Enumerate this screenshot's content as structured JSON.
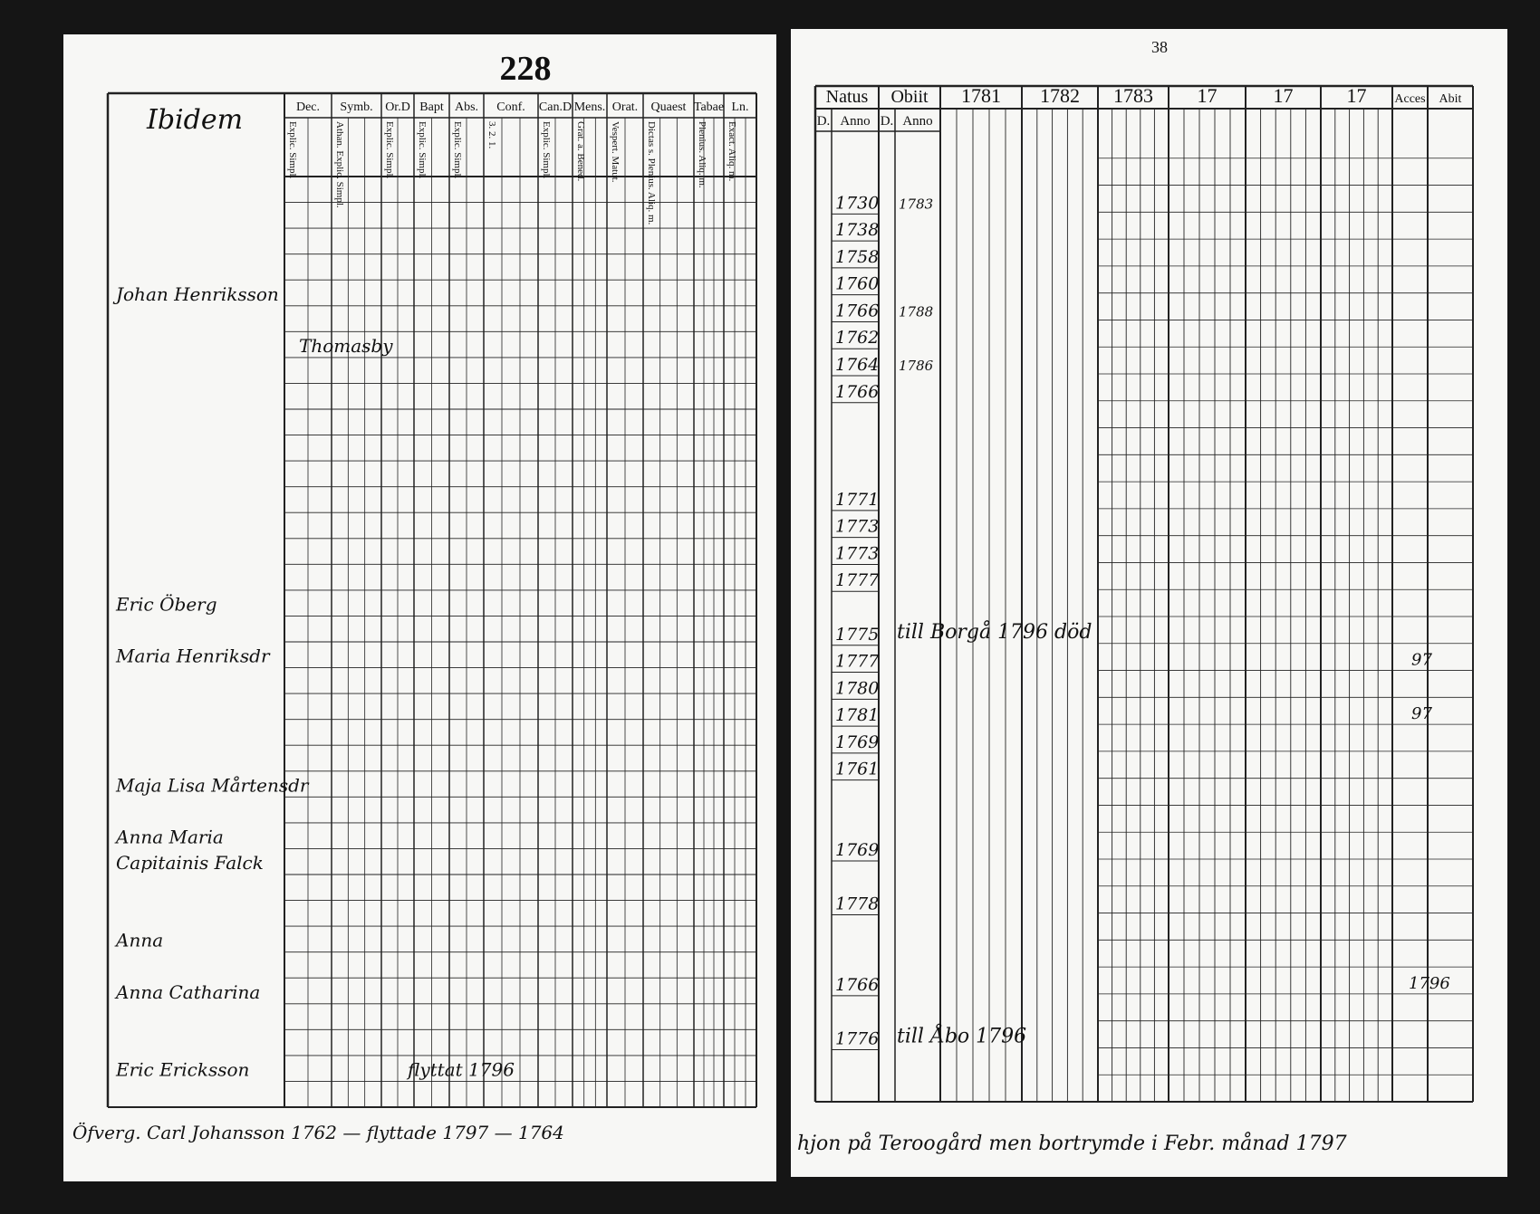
{
  "left_page": {
    "page_number": "228",
    "header": "Ibidem",
    "columns": [
      {
        "label": "Dec.",
        "sub": "Explic. Simpl."
      },
      {
        "label": "Symb.",
        "sub": "Athan. Explic. Simpl."
      },
      {
        "label": "Or.D",
        "sub": "Explic. Simpl."
      },
      {
        "label": "Bapt",
        "sub": "Explic. Simpl."
      },
      {
        "label": "Abs.",
        "sub": "Explic. Simpl."
      },
      {
        "label": "Conf.",
        "sub": "3. 2. 1."
      },
      {
        "label": "Can.D",
        "sub": "Explic. Simpl."
      },
      {
        "label": "Mens.",
        "sub": "Grat. a. Bened."
      },
      {
        "label": "Orat.",
        "sub": "Vespert. Matut."
      },
      {
        "label": "Quaest",
        "sub": "Dictas s. Plenius. Aliq. m."
      },
      {
        "label": "Tabae",
        "sub": "Plenius. Aliq. m."
      },
      {
        "label": "Ln.",
        "sub": "Exact. Aliq. m."
      }
    ],
    "rows": [
      "Johan Henriksson",
      "Thomasby",
      "Eric Öberg",
      "Maria Henriksdr",
      "Maja Lisa Mårtensdr",
      "Anna Maria",
      "Capitainis Falck",
      "Anna",
      "Anna Catharina",
      "Eric Ericksson",
      "flyttat 1796"
    ],
    "footer": "Öfverg. Carl Johansson 1762 — flyttade 1797 — 1764"
  },
  "right_page": {
    "page_number": "38",
    "columns": [
      {
        "label": "Natus",
        "sub": [
          "D.",
          "Anno"
        ]
      },
      {
        "label": "Obiit",
        "sub": [
          "D.",
          "Anno"
        ]
      },
      {
        "label": "1781"
      },
      {
        "label": "1782"
      },
      {
        "label": "1783"
      },
      {
        "label": "17"
      },
      {
        "label": "17"
      },
      {
        "label": "17"
      },
      {
        "label": "Acces"
      },
      {
        "label": "Abit"
      }
    ],
    "birth_years": [
      "1730",
      "1738",
      "1758",
      "1760",
      "1766",
      "1762",
      "1764",
      "1766",
      "1771",
      "1773",
      "1773",
      "1777",
      "1775",
      "1777",
      "1780",
      "1781",
      "1769",
      "1761",
      "1769",
      "1778",
      "1766",
      "1776"
    ],
    "death_years": [
      "1783",
      "1788",
      "1786"
    ],
    "notes": [
      "till Borgå 1796 död",
      "97",
      "97",
      "1796",
      "till Åbo 1796"
    ],
    "footer": "hjon på Teroogård men bortrymde i Febr. månad 1797"
  }
}
